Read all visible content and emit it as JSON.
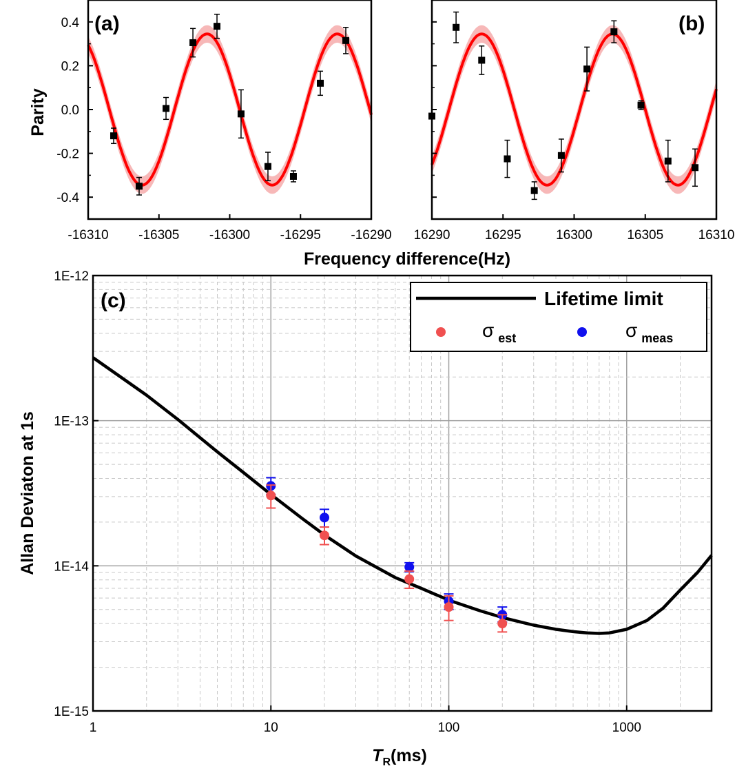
{
  "colors": {
    "fit": "#ff0000",
    "band": "#f7b8b8",
    "points_ab": "#000000",
    "est": "#f05050",
    "meas": "#1010ee",
    "limit": "#000000",
    "grid_major": "#a0a0a0",
    "grid_minor": "#c8c8c8"
  },
  "chart_data": [
    {
      "type": "scatter",
      "panel": "(a)",
      "ylabel": "Parity",
      "xlim": [
        -16310,
        -16290
      ],
      "ylim": [
        -0.5,
        0.5
      ],
      "xticks": [
        "-16310",
        "-16305",
        "-16300",
        "-16295",
        "-16290"
      ],
      "yticks": [
        "0.4",
        "0.2",
        "0.0",
        "-0.2",
        "-0.4"
      ],
      "points": [
        {
          "x": -16308.2,
          "y": -0.12,
          "err": 0.035
        },
        {
          "x": -16306.4,
          "y": -0.35,
          "err": 0.04
        },
        {
          "x": -16304.5,
          "y": 0.005,
          "err": 0.05
        },
        {
          "x": -16302.6,
          "y": 0.305,
          "err": 0.065
        },
        {
          "x": -16300.9,
          "y": 0.38,
          "err": 0.055
        },
        {
          "x": -16299.2,
          "y": -0.02,
          "err": 0.11
        },
        {
          "x": -16297.3,
          "y": -0.26,
          "err": 0.065
        },
        {
          "x": -16295.5,
          "y": -0.305,
          "err": 0.025
        },
        {
          "x": -16293.6,
          "y": 0.12,
          "err": 0.055
        },
        {
          "x": -16291.8,
          "y": 0.315,
          "err": 0.06
        }
      ],
      "fit": {
        "amplitude": 0.345,
        "period": 9.2,
        "peak_x": -16301.6,
        "band": 0.04
      }
    },
    {
      "type": "scatter",
      "panel": "(b)",
      "xlim": [
        16290,
        16310
      ],
      "ylim": [
        -0.5,
        0.5
      ],
      "xticks": [
        "16290",
        "16295",
        "16300",
        "16305",
        "16310"
      ],
      "points": [
        {
          "x": 16290.0,
          "y": -0.03,
          "err": 0.0
        },
        {
          "x": 16291.7,
          "y": 0.375,
          "err": 0.07
        },
        {
          "x": 16293.5,
          "y": 0.225,
          "err": 0.065
        },
        {
          "x": 16295.3,
          "y": -0.225,
          "err": 0.085
        },
        {
          "x": 16297.2,
          "y": -0.37,
          "err": 0.04
        },
        {
          "x": 16299.1,
          "y": -0.21,
          "err": 0.075
        },
        {
          "x": 16300.9,
          "y": 0.185,
          "err": 0.1
        },
        {
          "x": 16302.8,
          "y": 0.355,
          "err": 0.05
        },
        {
          "x": 16304.7,
          "y": 0.02,
          "err": 0.02
        },
        {
          "x": 16306.6,
          "y": -0.235,
          "err": 0.095
        },
        {
          "x": 16308.5,
          "y": -0.265,
          "err": 0.085
        }
      ],
      "fit": {
        "amplitude": 0.345,
        "period": 9.2,
        "peak_x": 16302.7,
        "band": 0.04
      }
    },
    {
      "type": "line",
      "panel": "(c)",
      "xlabel_italic": "T",
      "xlabel_sub": "R",
      "xlabel_rest": "(ms)",
      "ylabel": "Allan Deviaton at 1s",
      "log_x": true,
      "log_y": true,
      "xlim": [
        1,
        3000
      ],
      "ylim": [
        1e-15,
        1e-12
      ],
      "grid": true,
      "legend_position": "top-right",
      "xticks": [
        "1",
        "10",
        "100",
        "1000"
      ],
      "yticks": [
        "1E-12",
        "1E-13",
        "1E-14",
        "1E-15"
      ],
      "series": [
        {
          "name": "Lifetime limit",
          "kind": "line",
          "x": [
            1,
            1.5,
            2,
            3,
            5,
            7,
            10,
            15,
            20,
            30,
            50,
            70,
            100,
            150,
            200,
            300,
            400,
            500,
            600,
            700,
            800,
            1000,
            1300,
            1600,
            2000,
            2500,
            3000
          ],
          "y": [
            2.72e-13,
            1.92e-13,
            1.5e-13,
            1.02e-13,
            6.1e-14,
            4.4e-14,
            3.1e-14,
            2.12e-14,
            1.63e-14,
            1.17e-14,
            8.3e-15,
            7e-15,
            5.8e-15,
            4.9e-15,
            4.4e-15,
            3.9e-15,
            3.65e-15,
            3.52e-15,
            3.45e-15,
            3.42e-15,
            3.45e-15,
            3.65e-15,
            4.2e-15,
            5.1e-15,
            6.8e-15,
            9e-15,
            1.18e-14
          ]
        },
        {
          "name": "σest",
          "label_main": "σ",
          "label_sub": "est",
          "kind": "points",
          "x": [
            10,
            20,
            60,
            100,
            200
          ],
          "y": [
            3.05e-14,
            1.62e-14,
            8.1e-15,
            5.2e-15,
            4e-15
          ],
          "err_lo": [
            2.5e-14,
            1.4e-14,
            7e-15,
            4.2e-15,
            3.5e-15
          ],
          "err_hi": [
            3.6e-14,
            1.85e-14,
            9.2e-15,
            6.2e-15,
            4.6e-15
          ]
        },
        {
          "name": "σmeas",
          "label_main": "σ",
          "label_sub": "meas",
          "kind": "points",
          "x": [
            10,
            20,
            60,
            100,
            200
          ],
          "y": [
            3.55e-14,
            2.15e-14,
            9.8e-15,
            5.7e-15,
            4.6e-15
          ],
          "err_lo": [
            3.1e-14,
            1.85e-14,
            9.1e-15,
            5e-15,
            4.1e-15
          ],
          "err_hi": [
            4.05e-14,
            2.45e-14,
            1.05e-14,
            6.4e-15,
            5.2e-15
          ]
        }
      ]
    }
  ],
  "shared_xlabel_ab": "Frequency difference(Hz)"
}
